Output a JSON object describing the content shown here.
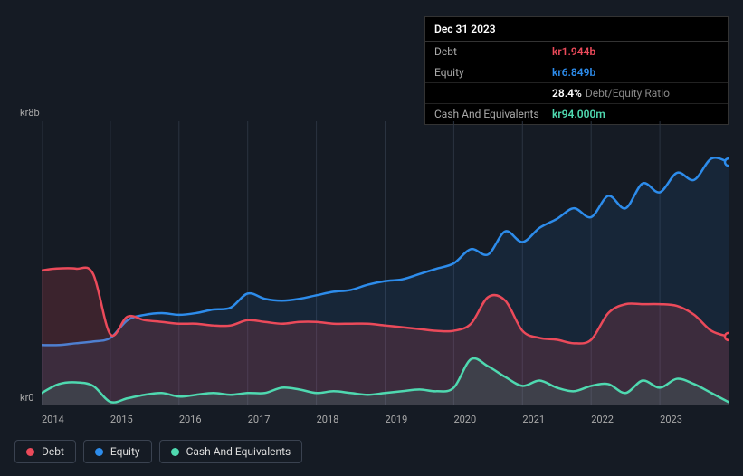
{
  "tooltip": {
    "date": "Dec 31 2023",
    "rows": [
      {
        "label": "Debt",
        "value": "kr1.944b",
        "color": "#eb4a5a"
      },
      {
        "label": "Equity",
        "value": "kr6.849b",
        "color": "#2d8ceb"
      },
      {
        "label": "",
        "value": "28.4%",
        "suffix": "Debt/Equity Ratio",
        "color": "#ffffff"
      },
      {
        "label": "Cash And Equivalents",
        "value": "kr94.000m",
        "color": "#4fd9b0"
      }
    ]
  },
  "chart": {
    "type": "area",
    "background_color": "#151b24",
    "y_top_label": "kr8b",
    "y_bottom_label": "kr0",
    "ylim": [
      0,
      8
    ],
    "xlim": [
      2014,
      2024
    ],
    "x_ticks": [
      "2014",
      "2015",
      "2016",
      "2017",
      "2018",
      "2019",
      "2020",
      "2021",
      "2022",
      "2023"
    ],
    "grid_color": "#2a3340",
    "series": [
      {
        "name": "Equity",
        "color": "#2d8ceb",
        "fill_opacity": 0.1,
        "stroke_width": 2.5,
        "data": [
          [
            2014.0,
            1.7
          ],
          [
            2014.25,
            1.7
          ],
          [
            2014.5,
            1.75
          ],
          [
            2014.75,
            1.8
          ],
          [
            2015.0,
            1.9
          ],
          [
            2015.25,
            2.4
          ],
          [
            2015.5,
            2.55
          ],
          [
            2015.75,
            2.6
          ],
          [
            2016.0,
            2.55
          ],
          [
            2016.25,
            2.6
          ],
          [
            2016.5,
            2.7
          ],
          [
            2016.75,
            2.75
          ],
          [
            2017.0,
            3.15
          ],
          [
            2017.25,
            3.0
          ],
          [
            2017.5,
            2.95
          ],
          [
            2017.75,
            3.0
          ],
          [
            2018.0,
            3.1
          ],
          [
            2018.25,
            3.2
          ],
          [
            2018.5,
            3.25
          ],
          [
            2018.75,
            3.4
          ],
          [
            2019.0,
            3.5
          ],
          [
            2019.25,
            3.55
          ],
          [
            2019.5,
            3.7
          ],
          [
            2019.75,
            3.85
          ],
          [
            2020.0,
            4.0
          ],
          [
            2020.25,
            4.4
          ],
          [
            2020.5,
            4.25
          ],
          [
            2020.75,
            4.9
          ],
          [
            2021.0,
            4.6
          ],
          [
            2021.25,
            5.0
          ],
          [
            2021.5,
            5.25
          ],
          [
            2021.75,
            5.55
          ],
          [
            2022.0,
            5.3
          ],
          [
            2022.25,
            5.9
          ],
          [
            2022.5,
            5.55
          ],
          [
            2022.75,
            6.25
          ],
          [
            2023.0,
            6.0
          ],
          [
            2023.25,
            6.55
          ],
          [
            2023.5,
            6.35
          ],
          [
            2023.75,
            6.95
          ],
          [
            2024.0,
            6.85
          ]
        ]
      },
      {
        "name": "Debt",
        "color": "#eb4a5a",
        "fill_opacity": 0.18,
        "stroke_width": 2.5,
        "data": [
          [
            2014.0,
            3.8
          ],
          [
            2014.2,
            3.85
          ],
          [
            2014.5,
            3.85
          ],
          [
            2014.75,
            3.7
          ],
          [
            2015.0,
            2.0
          ],
          [
            2015.25,
            2.5
          ],
          [
            2015.5,
            2.4
          ],
          [
            2015.75,
            2.35
          ],
          [
            2016.0,
            2.3
          ],
          [
            2016.25,
            2.3
          ],
          [
            2016.5,
            2.25
          ],
          [
            2016.75,
            2.25
          ],
          [
            2017.0,
            2.4
          ],
          [
            2017.25,
            2.35
          ],
          [
            2017.5,
            2.3
          ],
          [
            2017.75,
            2.35
          ],
          [
            2018.0,
            2.35
          ],
          [
            2018.25,
            2.3
          ],
          [
            2018.5,
            2.3
          ],
          [
            2018.75,
            2.3
          ],
          [
            2019.0,
            2.25
          ],
          [
            2019.25,
            2.2
          ],
          [
            2019.5,
            2.15
          ],
          [
            2019.75,
            2.1
          ],
          [
            2020.0,
            2.1
          ],
          [
            2020.25,
            2.3
          ],
          [
            2020.5,
            3.05
          ],
          [
            2020.75,
            2.95
          ],
          [
            2021.0,
            2.1
          ],
          [
            2021.25,
            1.9
          ],
          [
            2021.5,
            1.85
          ],
          [
            2021.75,
            1.75
          ],
          [
            2022.0,
            1.85
          ],
          [
            2022.25,
            2.6
          ],
          [
            2022.5,
            2.85
          ],
          [
            2022.75,
            2.85
          ],
          [
            2023.0,
            2.85
          ],
          [
            2023.25,
            2.8
          ],
          [
            2023.5,
            2.55
          ],
          [
            2023.75,
            2.1
          ],
          [
            2024.0,
            1.94
          ]
        ]
      },
      {
        "name": "Cash And Equivalents",
        "color": "#4fd9b0",
        "fill_opacity": 0.12,
        "stroke_width": 2.5,
        "data": [
          [
            2014.0,
            0.35
          ],
          [
            2014.25,
            0.6
          ],
          [
            2014.5,
            0.65
          ],
          [
            2014.75,
            0.55
          ],
          [
            2015.0,
            0.1
          ],
          [
            2015.25,
            0.2
          ],
          [
            2015.5,
            0.3
          ],
          [
            2015.75,
            0.35
          ],
          [
            2016.0,
            0.25
          ],
          [
            2016.25,
            0.3
          ],
          [
            2016.5,
            0.35
          ],
          [
            2016.75,
            0.3
          ],
          [
            2017.0,
            0.35
          ],
          [
            2017.25,
            0.35
          ],
          [
            2017.5,
            0.5
          ],
          [
            2017.75,
            0.45
          ],
          [
            2018.0,
            0.35
          ],
          [
            2018.25,
            0.4
          ],
          [
            2018.5,
            0.35
          ],
          [
            2018.75,
            0.3
          ],
          [
            2019.0,
            0.35
          ],
          [
            2019.25,
            0.4
          ],
          [
            2019.5,
            0.45
          ],
          [
            2019.75,
            0.4
          ],
          [
            2020.0,
            0.5
          ],
          [
            2020.25,
            1.3
          ],
          [
            2020.5,
            1.1
          ],
          [
            2020.75,
            0.8
          ],
          [
            2021.0,
            0.55
          ],
          [
            2021.25,
            0.7
          ],
          [
            2021.5,
            0.5
          ],
          [
            2021.75,
            0.4
          ],
          [
            2022.0,
            0.55
          ],
          [
            2022.25,
            0.6
          ],
          [
            2022.5,
            0.35
          ],
          [
            2022.75,
            0.7
          ],
          [
            2023.0,
            0.5
          ],
          [
            2023.25,
            0.75
          ],
          [
            2023.5,
            0.6
          ],
          [
            2023.75,
            0.35
          ],
          [
            2024.0,
            0.094
          ]
        ]
      }
    ]
  },
  "legend": {
    "items": [
      {
        "label": "Debt",
        "color": "#eb4a5a"
      },
      {
        "label": "Equity",
        "color": "#2d8ceb"
      },
      {
        "label": "Cash And Equivalents",
        "color": "#4fd9b0"
      }
    ]
  }
}
